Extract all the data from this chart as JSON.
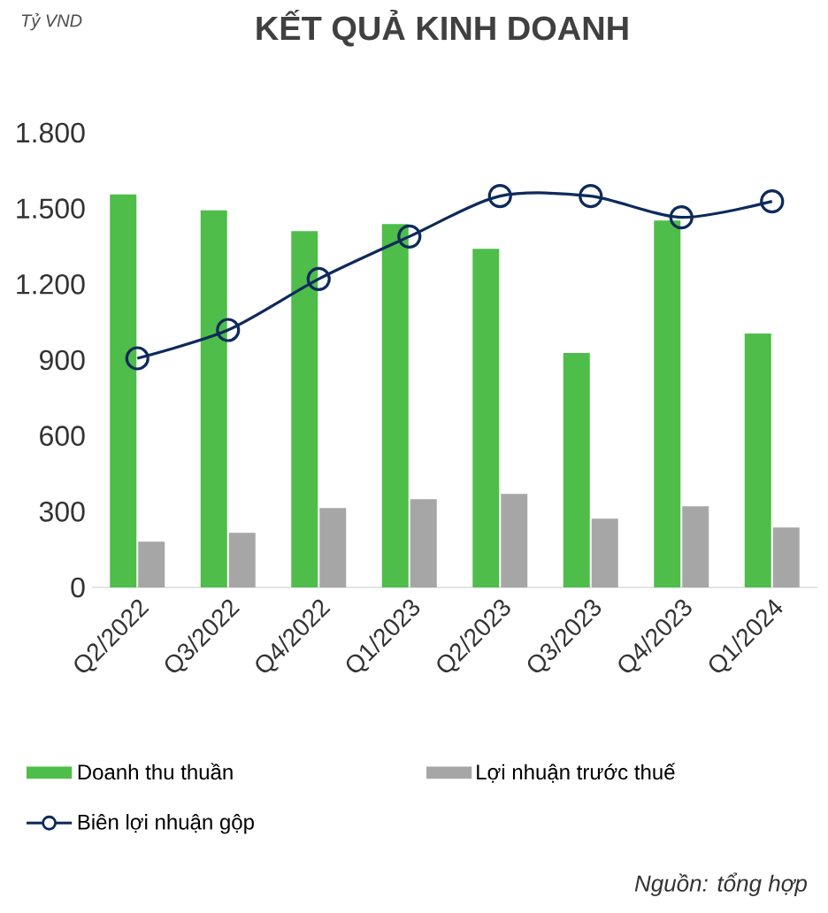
{
  "chart_data": {
    "type": "bar",
    "title": "KẾT QUẢ KINH DOANH",
    "categories": [
      "Q2/2022",
      "Q3/2022",
      "Q4/2022",
      "Q1/2023",
      "Q2/2023",
      "Q3/2023",
      "Q4/2023",
      "Q1/2024"
    ],
    "series": [
      {
        "name": "Doanh thu thuần",
        "color": "#4fbd4a",
        "values": [
          1556,
          1493,
          1410,
          1438,
          1340,
          928,
          1452,
          1005
        ]
      },
      {
        "name": "Lợi nhuận trước thuế",
        "color": "#a6a6a6",
        "values": [
          181,
          216,
          314,
          349,
          370,
          272,
          321,
          237
        ]
      },
      {
        "name": "Biên lợi nhuận gộp",
        "type": "line",
        "marker": "circle",
        "color": "#0d2a5c",
        "values": [
          907,
          1019,
          1221,
          1389,
          1549,
          1549,
          1465,
          1528
        ]
      }
    ],
    "ylim": [
      0,
      1800
    ],
    "yticks": [
      0,
      300,
      600,
      900,
      {
        "value": 1200,
        "label": "1.200"
      },
      {
        "value": 1500,
        "label": "1.500"
      },
      {
        "value": 1800,
        "label": "1.800"
      }
    ],
    "legend": "bottom",
    "annotations": [
      "Tỷ VND",
      "Nguồn: tổng hợp"
    ]
  }
}
